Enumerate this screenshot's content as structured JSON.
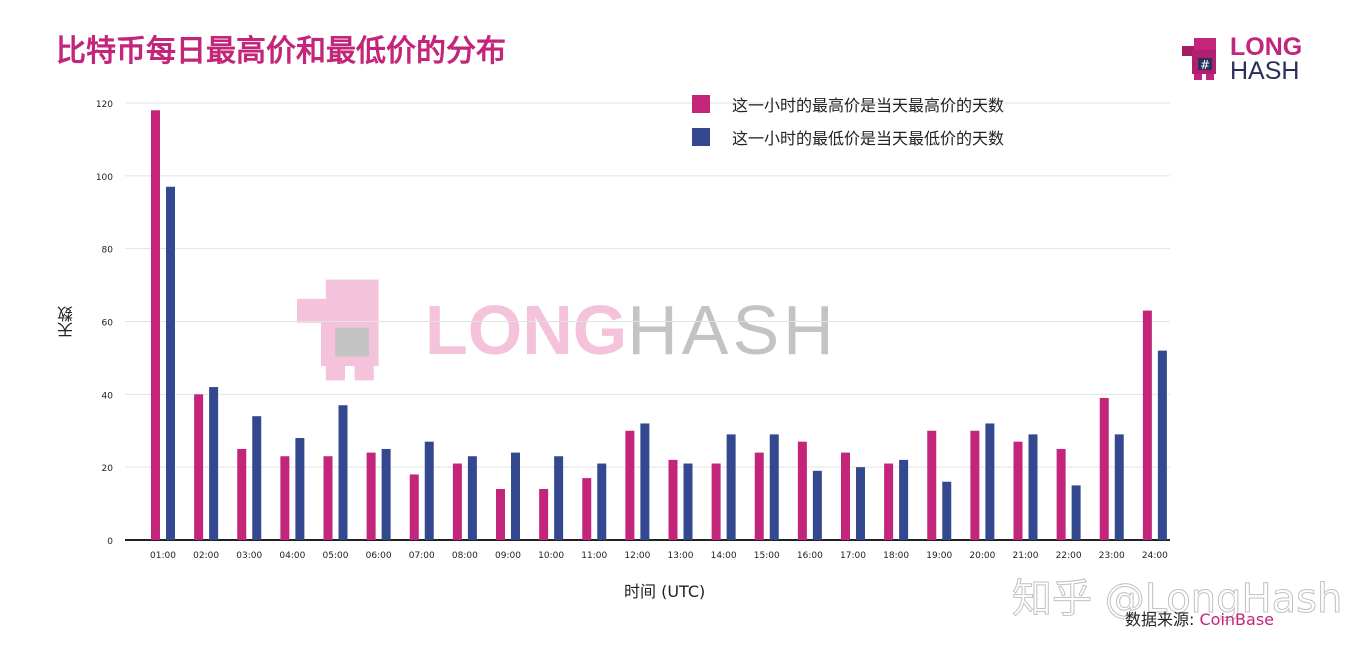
{
  "chart_data": {
    "type": "bar",
    "title": "比特币每日最高价和最低价的分布",
    "xlabel": "时间 (UTC)",
    "ylabel": "天数",
    "ylim": [
      0,
      120
    ],
    "yticks": [
      0,
      20,
      40,
      60,
      80,
      100,
      120
    ],
    "grid": true,
    "legend_position": "top-right",
    "categories": [
      "01:00",
      "02:00",
      "03:00",
      "04:00",
      "05:00",
      "06:00",
      "07:00",
      "08:00",
      "09:00",
      "10:00",
      "11:00",
      "12:00",
      "13:00",
      "14:00",
      "15:00",
      "16:00",
      "17:00",
      "18:00",
      "19:00",
      "20:00",
      "21:00",
      "22:00",
      "23:00",
      "24:00"
    ],
    "series": [
      {
        "name": "这一小时的最高价是当天最高价的天数",
        "color": "#c2257a",
        "values": [
          118,
          40,
          25,
          23,
          23,
          24,
          18,
          21,
          14,
          14,
          17,
          30,
          22,
          21,
          24,
          27,
          24,
          21,
          30,
          30,
          27,
          25,
          39,
          63
        ]
      },
      {
        "name": "这一小时的最低价是当天最低价的天数",
        "color": "#34488f",
        "values": [
          97,
          42,
          34,
          28,
          37,
          25,
          27,
          23,
          24,
          23,
          21,
          32,
          21,
          29,
          29,
          19,
          20,
          22,
          16,
          32,
          29,
          15,
          29,
          52
        ]
      }
    ]
  },
  "logo": {
    "line1": "LONG",
    "line2": "HASH"
  },
  "watermark": {
    "line1": "LONG",
    "line2": "HASH",
    "zhihu": "知乎 @LongHash"
  },
  "source": {
    "label": "数据来源: ",
    "value": "CoinBase"
  }
}
